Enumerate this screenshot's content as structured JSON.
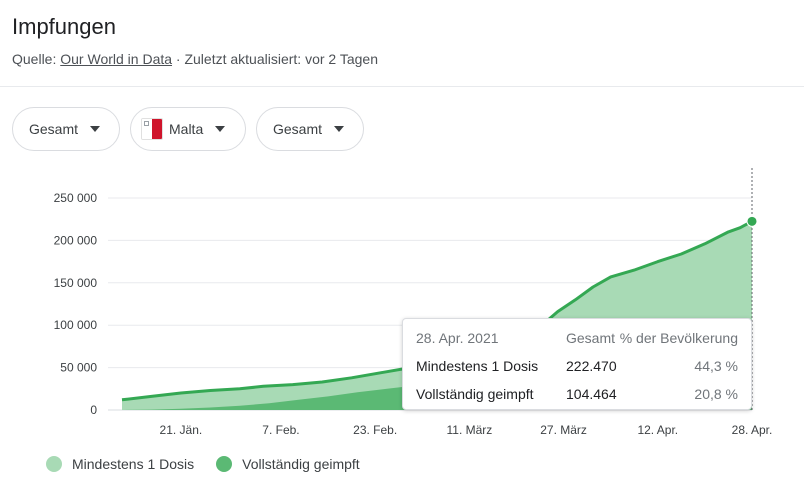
{
  "header": {
    "title": "Impfungen",
    "source_prefix": "Quelle: ",
    "source_link": "Our World in Data",
    "updated": " · Zuletzt aktualisiert: vor 2 Tagen"
  },
  "filters": {
    "metric": "Gesamt",
    "country": "Malta",
    "mode": "Gesamt"
  },
  "tooltip": {
    "date": "28. Apr. 2021",
    "head_total": "Gesamt",
    "head_pct": "% der Bevölkerung",
    "rows": [
      {
        "label": "Mindestens 1 Dosis",
        "value": "222.470",
        "pct": "44,3 %"
      },
      {
        "label": "Vollständig geimpft",
        "value": "104.464",
        "pct": "20,8 %"
      }
    ]
  },
  "colors": {
    "dose1_fill": "#a8dab5",
    "full_fill": "#5bb974",
    "line": "#34a853",
    "grid": "#e8eaed",
    "axis_text": "#3c4043",
    "cursor": "#5f6368"
  },
  "chart_data": {
    "type": "area",
    "x_axis": {
      "type": "date",
      "range": [
        "2021-01-11",
        "2021-04-28"
      ],
      "ticks": [
        {
          "date": "2021-01-21",
          "label": "21. Jän."
        },
        {
          "date": "2021-02-07",
          "label": "7. Feb."
        },
        {
          "date": "2021-02-23",
          "label": "23. Feb."
        },
        {
          "date": "2021-03-11",
          "label": "11. März"
        },
        {
          "date": "2021-03-27",
          "label": "27. März"
        },
        {
          "date": "2021-04-12",
          "label": "12. Apr."
        },
        {
          "date": "2021-04-28",
          "label": "28. Apr."
        }
      ]
    },
    "y_axis": {
      "range": [
        0,
        270000
      ],
      "ticks": [
        {
          "value": 0,
          "label": "0"
        },
        {
          "value": 50000,
          "label": "50 000"
        },
        {
          "value": 100000,
          "label": "100 000"
        },
        {
          "value": 150000,
          "label": "150 000"
        },
        {
          "value": 200000,
          "label": "200 000"
        },
        {
          "value": 250000,
          "label": "250 000"
        }
      ]
    },
    "grid": true,
    "legend_position": "bottom-left",
    "highlight_date": "2021-04-28",
    "series": [
      {
        "name": "Mindestens 1 Dosis",
        "points": [
          [
            "2021-01-11",
            12000
          ],
          [
            "2021-01-16",
            16000
          ],
          [
            "2021-01-21",
            20000
          ],
          [
            "2021-01-26",
            23000
          ],
          [
            "2021-01-31",
            25000
          ],
          [
            "2021-02-04",
            28000
          ],
          [
            "2021-02-09",
            30000
          ],
          [
            "2021-02-14",
            33000
          ],
          [
            "2021-02-19",
            38000
          ],
          [
            "2021-02-24",
            44000
          ],
          [
            "2021-03-01",
            50000
          ],
          [
            "2021-03-06",
            53000
          ],
          [
            "2021-03-11",
            60000
          ],
          [
            "2021-03-14",
            66000
          ],
          [
            "2021-03-17",
            72000
          ],
          [
            "2021-03-20",
            82000
          ],
          [
            "2021-03-23",
            98000
          ],
          [
            "2021-03-26",
            116000
          ],
          [
            "2021-03-29",
            130000
          ],
          [
            "2021-04-01",
            145000
          ],
          [
            "2021-04-04",
            157000
          ],
          [
            "2021-04-08",
            165000
          ],
          [
            "2021-04-12",
            175000
          ],
          [
            "2021-04-16",
            184000
          ],
          [
            "2021-04-20",
            196000
          ],
          [
            "2021-04-24",
            210000
          ],
          [
            "2021-04-26",
            215000
          ],
          [
            "2021-04-28",
            222470
          ]
        ]
      },
      {
        "name": "Vollständig geimpft",
        "points": [
          [
            "2021-01-11",
            0
          ],
          [
            "2021-01-16",
            500
          ],
          [
            "2021-01-21",
            1500
          ],
          [
            "2021-01-26",
            3000
          ],
          [
            "2021-01-31",
            5000
          ],
          [
            "2021-02-05",
            8000
          ],
          [
            "2021-02-10",
            12000
          ],
          [
            "2021-02-15",
            16000
          ],
          [
            "2021-02-20",
            21000
          ],
          [
            "2021-02-25",
            25000
          ],
          [
            "2021-03-02",
            29000
          ],
          [
            "2021-03-07",
            33000
          ],
          [
            "2021-03-11",
            36000
          ],
          [
            "2021-03-16",
            42000
          ],
          [
            "2021-03-21",
            48000
          ],
          [
            "2021-03-26",
            54000
          ],
          [
            "2021-03-31",
            60000
          ],
          [
            "2021-04-05",
            68000
          ],
          [
            "2021-04-10",
            76000
          ],
          [
            "2021-04-15",
            84000
          ],
          [
            "2021-04-20",
            92000
          ],
          [
            "2021-04-25",
            100000
          ],
          [
            "2021-04-28",
            104464
          ]
        ]
      }
    ]
  }
}
